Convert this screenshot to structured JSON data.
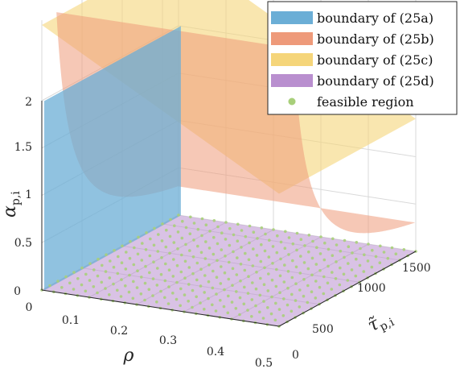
{
  "chart_data": {
    "type": "surface3d",
    "axes": {
      "x": {
        "label": "ρ",
        "range": [
          0,
          0.5
        ],
        "ticks": [
          "0",
          "0.1",
          "0.2",
          "0.3",
          "0.4",
          "0.5"
        ]
      },
      "y": {
        "label_main": "τ̃",
        "label_sub": "p,i",
        "range": [
          0,
          1700
        ],
        "ticks": [
          "0",
          "500",
          "1000",
          "1500"
        ]
      },
      "z": {
        "label_main": "α",
        "label_sub": "p,i",
        "range": [
          0,
          2
        ],
        "ticks": [
          "0",
          "0.5",
          "1",
          "1.5",
          "2"
        ]
      }
    },
    "grid": true,
    "legend_position": "top-right",
    "legend": [
      {
        "label": "boundary of (25a)",
        "color": "#6baed6",
        "kind": "patch"
      },
      {
        "label": "boundary of (25b)",
        "color": "#ee9a7a",
        "kind": "patch"
      },
      {
        "label": "boundary of (25c)",
        "color": "#f5d57a",
        "kind": "patch"
      },
      {
        "label": "boundary of (25d)",
        "color": "#b98fcf",
        "kind": "patch"
      },
      {
        "label": "feasible region",
        "color": "#a8cf7a",
        "kind": "marker"
      }
    ],
    "surfaces": {
      "25a": {
        "description_plane": "rho = const",
        "rho": 0.005,
        "color": "#6baed6"
      },
      "25b": {
        "description_curve": "alpha = k / tau",
        "k": 520,
        "color": "#ee9a7a"
      },
      "25c": {
        "description_plane": "tilted plane",
        "alpha_at": [
          [
            0,
            0,
            2.8
          ],
          [
            0,
            1700,
            2.8
          ],
          [
            0.5,
            0,
            1.4
          ]
        ],
        "color": "#f5d57a"
      },
      "25d": {
        "alpha": 0.0,
        "color": "#b98fcf"
      }
    },
    "feasible_points": {
      "rho_step": 0.025,
      "tau_step": 100,
      "color": "#a8cf7a"
    }
  }
}
